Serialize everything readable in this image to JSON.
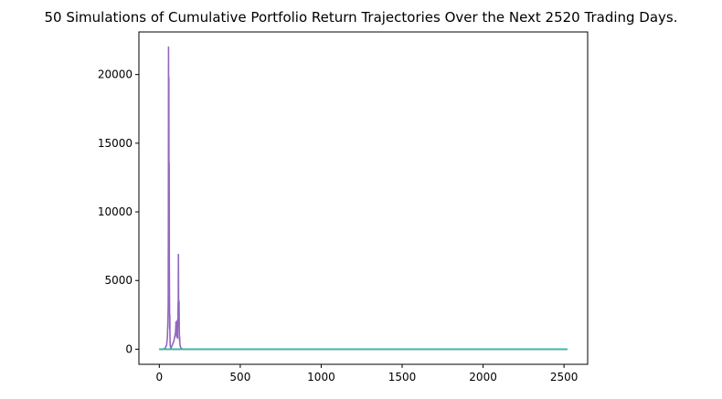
{
  "chart_data": {
    "type": "line",
    "title": "50 Simulations of Cumulative Portfolio Return Trajectories Over the Next 2520 Trading Days.",
    "xlabel": "",
    "ylabel": "",
    "xlim": [
      -126,
      2646
    ],
    "ylim": [
      -1100,
      23100
    ],
    "x_ticks": [
      0,
      500,
      1000,
      1500,
      2000,
      2500
    ],
    "y_ticks": [
      0,
      5000,
      10000,
      15000,
      20000
    ],
    "grid": false,
    "legend": "none",
    "series_colors": [
      "#9467bd",
      "#8c564b",
      "#e377c2",
      "#7f7f7f",
      "#bcbd22",
      "#17becf"
    ],
    "series": [
      {
        "x": [
          0,
          20,
          35,
          45,
          50,
          53,
          55,
          56,
          57,
          58,
          59,
          60,
          61,
          62,
          63,
          64,
          65,
          66,
          67,
          68,
          70,
          72,
          75,
          80,
          90,
          95,
          100,
          103,
          105,
          107,
          108,
          109,
          110,
          111,
          112,
          113,
          114,
          115,
          116,
          117,
          118,
          119,
          120,
          121,
          122,
          123,
          124,
          125,
          126,
          127,
          128,
          130,
          133,
          136,
          140,
          150,
          170,
          2520
        ],
        "y": [
          1,
          2,
          50,
          300,
          900,
          2000,
          3200,
          9000,
          22000,
          15000,
          19800,
          9500,
          13600,
          6000,
          3500,
          1500,
          2500,
          900,
          400,
          200,
          120,
          80,
          150,
          300,
          600,
          900,
          1200,
          2000,
          1500,
          900,
          1700,
          2000,
          1100,
          2100,
          1300,
          800,
          1600,
          2200,
          3400,
          2300,
          6900,
          4200,
          2200,
          1700,
          3500,
          2100,
          1000,
          600,
          900,
          500,
          300,
          200,
          100,
          60,
          30,
          10,
          3,
          2
        ]
      },
      {
        "x": [
          0,
          2520
        ],
        "y": [
          1,
          1.5
        ]
      },
      {
        "x": [
          0,
          2520
        ],
        "y": [
          1,
          3
        ]
      },
      {
        "x": [
          0,
          2520
        ],
        "y": [
          1,
          2
        ]
      },
      {
        "x": [
          0,
          2520
        ],
        "y": [
          1,
          4
        ]
      },
      {
        "x": [
          0,
          2520
        ],
        "y": [
          1,
          2.5
        ]
      }
    ]
  }
}
